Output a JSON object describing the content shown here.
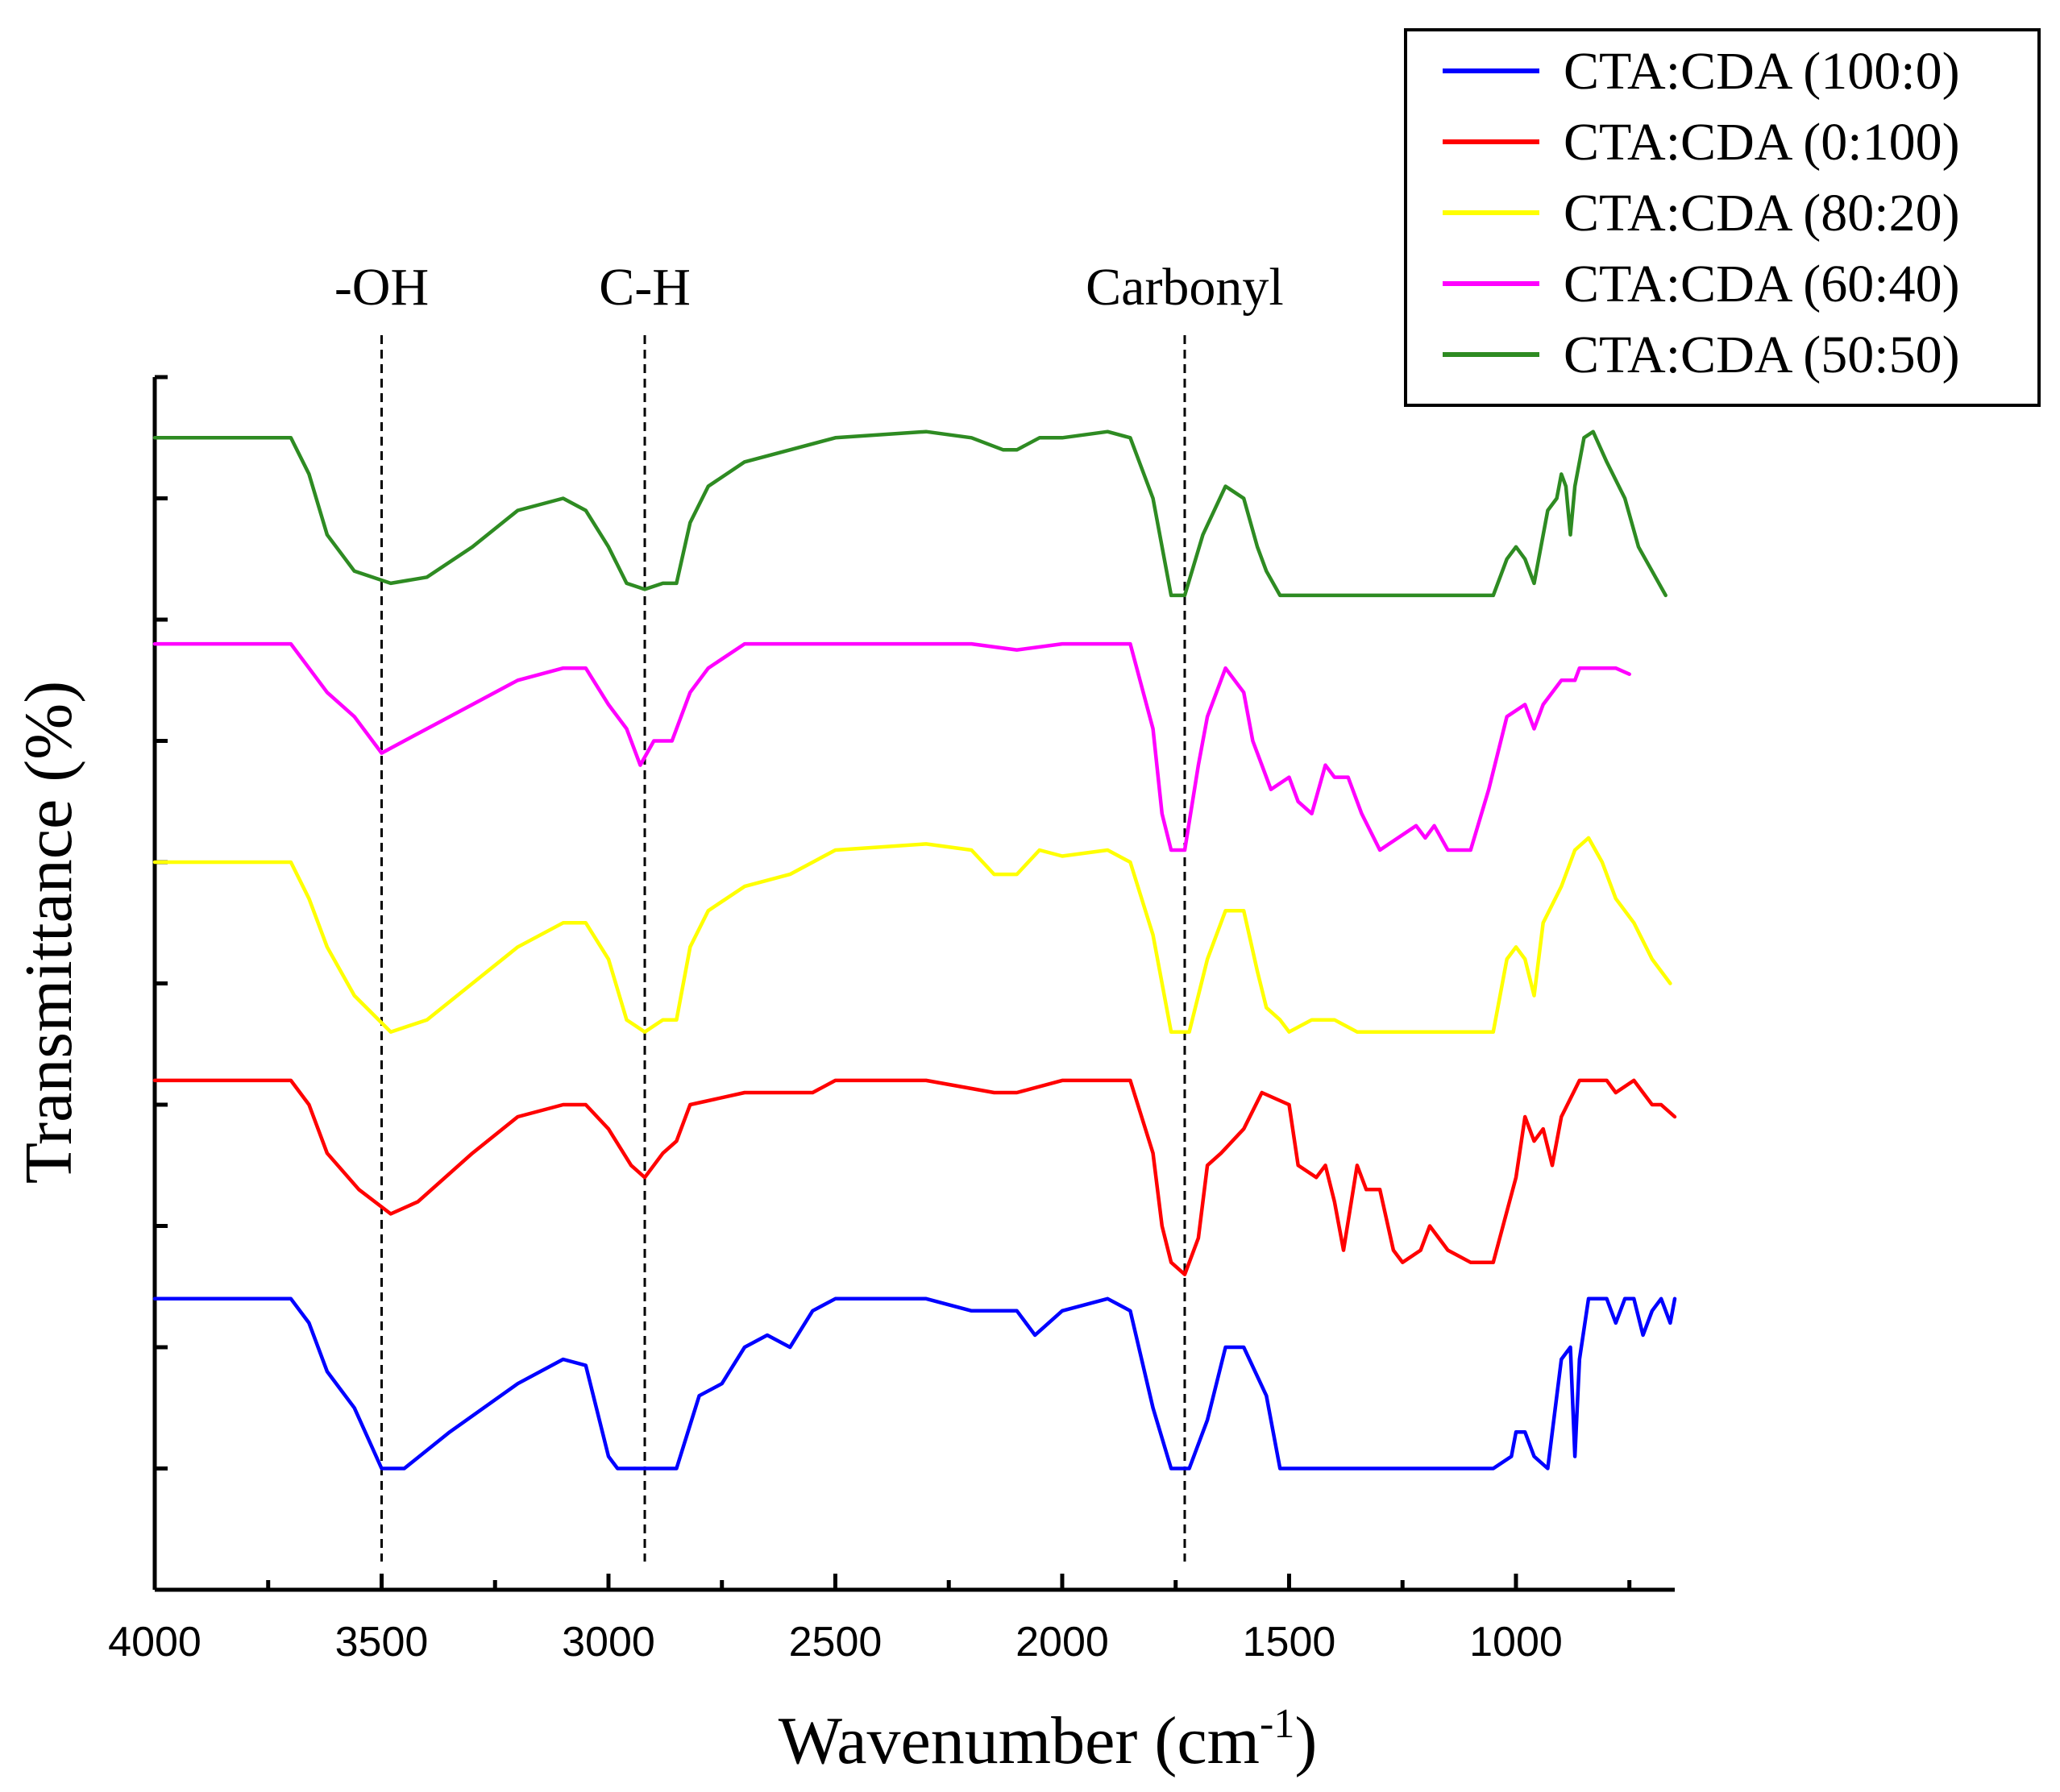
{
  "chart_data": {
    "type": "line",
    "title": "",
    "xlabel": "Wavenumber (cm",
    "xlabel_sup": "-1",
    "xlabel_end": ")",
    "ylabel": "Transmittance (%)",
    "xlim": [
      4000,
      650
    ],
    "x_reversed": true,
    "xticks": [
      4000,
      3500,
      3000,
      2500,
      2000,
      1500,
      1000
    ],
    "ylim": [
      0,
      1
    ],
    "y_tick_count": 11,
    "grid": false,
    "legend_position": "top-right",
    "annotations": [
      {
        "label": "-OH",
        "x": 3500
      },
      {
        "label": "C-H",
        "x": 2920
      },
      {
        "label": "Carbonyl",
        "x": 1730
      }
    ],
    "series": [
      {
        "name": "CTA:CDA (100:0)",
        "color": "#0000ff",
        "points": [
          [
            4000,
            0.24
          ],
          [
            3700,
            0.24
          ],
          [
            3660,
            0.22
          ],
          [
            3620,
            0.18
          ],
          [
            3560,
            0.15
          ],
          [
            3500,
            0.1
          ],
          [
            3450,
            0.1
          ],
          [
            3350,
            0.13
          ],
          [
            3200,
            0.17
          ],
          [
            3100,
            0.19
          ],
          [
            3050,
            0.185
          ],
          [
            3000,
            0.11
          ],
          [
            2980,
            0.1
          ],
          [
            2900,
            0.1
          ],
          [
            2850,
            0.1
          ],
          [
            2800,
            0.16
          ],
          [
            2750,
            0.17
          ],
          [
            2700,
            0.2
          ],
          [
            2650,
            0.21
          ],
          [
            2600,
            0.2
          ],
          [
            2550,
            0.23
          ],
          [
            2500,
            0.24
          ],
          [
            2300,
            0.24
          ],
          [
            2200,
            0.23
          ],
          [
            2100,
            0.23
          ],
          [
            2060,
            0.21
          ],
          [
            2000,
            0.23
          ],
          [
            1900,
            0.24
          ],
          [
            1850,
            0.23
          ],
          [
            1800,
            0.15
          ],
          [
            1760,
            0.1
          ],
          [
            1720,
            0.1
          ],
          [
            1680,
            0.14
          ],
          [
            1640,
            0.2
          ],
          [
            1600,
            0.2
          ],
          [
            1550,
            0.16
          ],
          [
            1520,
            0.1
          ],
          [
            1450,
            0.1
          ],
          [
            1100,
            0.1
          ],
          [
            1050,
            0.1
          ],
          [
            1010,
            0.11
          ],
          [
            1000,
            0.13
          ],
          [
            980,
            0.13
          ],
          [
            960,
            0.11
          ],
          [
            930,
            0.1
          ],
          [
            900,
            0.19
          ],
          [
            880,
            0.2
          ],
          [
            870,
            0.11
          ],
          [
            860,
            0.19
          ],
          [
            840,
            0.24
          ],
          [
            800,
            0.24
          ],
          [
            780,
            0.22
          ],
          [
            760,
            0.24
          ],
          [
            740,
            0.24
          ],
          [
            720,
            0.21
          ],
          [
            700,
            0.23
          ],
          [
            680,
            0.24
          ],
          [
            660,
            0.22
          ],
          [
            650,
            0.24
          ]
        ]
      },
      {
        "name": "CTA:CDA (0:100)",
        "color": "#ff0000",
        "points": [
          [
            4000,
            0.42
          ],
          [
            3700,
            0.42
          ],
          [
            3660,
            0.4
          ],
          [
            3620,
            0.36
          ],
          [
            3550,
            0.33
          ],
          [
            3480,
            0.31
          ],
          [
            3420,
            0.32
          ],
          [
            3300,
            0.36
          ],
          [
            3200,
            0.39
          ],
          [
            3100,
            0.4
          ],
          [
            3050,
            0.4
          ],
          [
            3000,
            0.38
          ],
          [
            2950,
            0.35
          ],
          [
            2920,
            0.34
          ],
          [
            2880,
            0.36
          ],
          [
            2850,
            0.37
          ],
          [
            2820,
            0.4
          ],
          [
            2700,
            0.41
          ],
          [
            2550,
            0.41
          ],
          [
            2500,
            0.42
          ],
          [
            2300,
            0.42
          ],
          [
            2150,
            0.41
          ],
          [
            2100,
            0.41
          ],
          [
            2000,
            0.42
          ],
          [
            1900,
            0.42
          ],
          [
            1850,
            0.42
          ],
          [
            1800,
            0.36
          ],
          [
            1780,
            0.3
          ],
          [
            1760,
            0.27
          ],
          [
            1730,
            0.26
          ],
          [
            1700,
            0.29
          ],
          [
            1680,
            0.35
          ],
          [
            1650,
            0.36
          ],
          [
            1600,
            0.38
          ],
          [
            1560,
            0.41
          ],
          [
            1500,
            0.4
          ],
          [
            1480,
            0.35
          ],
          [
            1440,
            0.34
          ],
          [
            1420,
            0.35
          ],
          [
            1400,
            0.32
          ],
          [
            1380,
            0.28
          ],
          [
            1350,
            0.35
          ],
          [
            1330,
            0.33
          ],
          [
            1300,
            0.33
          ],
          [
            1270,
            0.28
          ],
          [
            1250,
            0.27
          ],
          [
            1210,
            0.28
          ],
          [
            1190,
            0.3
          ],
          [
            1170,
            0.29
          ],
          [
            1150,
            0.28
          ],
          [
            1100,
            0.27
          ],
          [
            1050,
            0.27
          ],
          [
            1000,
            0.34
          ],
          [
            980,
            0.39
          ],
          [
            960,
            0.37
          ],
          [
            940,
            0.38
          ],
          [
            920,
            0.35
          ],
          [
            900,
            0.39
          ],
          [
            860,
            0.42
          ],
          [
            800,
            0.42
          ],
          [
            780,
            0.41
          ],
          [
            740,
            0.42
          ],
          [
            720,
            0.41
          ],
          [
            700,
            0.4
          ],
          [
            680,
            0.4
          ],
          [
            650,
            0.39
          ]
        ]
      },
      {
        "name": "CTA:CDA (80:20)",
        "color": "#ffff00",
        "points": [
          [
            4000,
            0.6
          ],
          [
            3700,
            0.6
          ],
          [
            3660,
            0.57
          ],
          [
            3620,
            0.53
          ],
          [
            3560,
            0.49
          ],
          [
            3480,
            0.46
          ],
          [
            3400,
            0.47
          ],
          [
            3300,
            0.5
          ],
          [
            3200,
            0.53
          ],
          [
            3100,
            0.55
          ],
          [
            3050,
            0.55
          ],
          [
            3000,
            0.52
          ],
          [
            2960,
            0.47
          ],
          [
            2920,
            0.46
          ],
          [
            2880,
            0.47
          ],
          [
            2850,
            0.47
          ],
          [
            2820,
            0.53
          ],
          [
            2780,
            0.56
          ],
          [
            2700,
            0.58
          ],
          [
            2600,
            0.59
          ],
          [
            2500,
            0.61
          ],
          [
            2300,
            0.615
          ],
          [
            2200,
            0.61
          ],
          [
            2150,
            0.59
          ],
          [
            2100,
            0.59
          ],
          [
            2050,
            0.61
          ],
          [
            2000,
            0.605
          ],
          [
            1900,
            0.61
          ],
          [
            1850,
            0.6
          ],
          [
            1800,
            0.54
          ],
          [
            1760,
            0.46
          ],
          [
            1720,
            0.46
          ],
          [
            1680,
            0.52
          ],
          [
            1640,
            0.56
          ],
          [
            1600,
            0.56
          ],
          [
            1570,
            0.51
          ],
          [
            1550,
            0.48
          ],
          [
            1520,
            0.47
          ],
          [
            1500,
            0.46
          ],
          [
            1450,
            0.47
          ],
          [
            1400,
            0.47
          ],
          [
            1350,
            0.46
          ],
          [
            1100,
            0.46
          ],
          [
            1050,
            0.46
          ],
          [
            1020,
            0.52
          ],
          [
            1000,
            0.53
          ],
          [
            980,
            0.52
          ],
          [
            960,
            0.49
          ],
          [
            940,
            0.55
          ],
          [
            900,
            0.58
          ],
          [
            870,
            0.61
          ],
          [
            840,
            0.62
          ],
          [
            810,
            0.6
          ],
          [
            780,
            0.57
          ],
          [
            740,
            0.55
          ],
          [
            700,
            0.52
          ],
          [
            660,
            0.5
          ]
        ]
      },
      {
        "name": "CTA:CDA (60:40)",
        "color": "#ff00ff",
        "points": [
          [
            4000,
            0.78
          ],
          [
            3700,
            0.78
          ],
          [
            3660,
            0.76
          ],
          [
            3620,
            0.74
          ],
          [
            3560,
            0.72
          ],
          [
            3500,
            0.69
          ],
          [
            3450,
            0.7
          ],
          [
            3300,
            0.73
          ],
          [
            3200,
            0.75
          ],
          [
            3100,
            0.76
          ],
          [
            3050,
            0.76
          ],
          [
            3000,
            0.73
          ],
          [
            2960,
            0.71
          ],
          [
            2930,
            0.68
          ],
          [
            2900,
            0.7
          ],
          [
            2860,
            0.7
          ],
          [
            2820,
            0.74
          ],
          [
            2780,
            0.76
          ],
          [
            2700,
            0.78
          ],
          [
            2500,
            0.78
          ],
          [
            2200,
            0.78
          ],
          [
            2100,
            0.775
          ],
          [
            2000,
            0.78
          ],
          [
            1900,
            0.78
          ],
          [
            1850,
            0.78
          ],
          [
            1800,
            0.71
          ],
          [
            1780,
            0.64
          ],
          [
            1760,
            0.61
          ],
          [
            1730,
            0.61
          ],
          [
            1700,
            0.68
          ],
          [
            1680,
            0.72
          ],
          [
            1640,
            0.76
          ],
          [
            1600,
            0.74
          ],
          [
            1580,
            0.7
          ],
          [
            1560,
            0.68
          ],
          [
            1540,
            0.66
          ],
          [
            1500,
            0.67
          ],
          [
            1480,
            0.65
          ],
          [
            1450,
            0.64
          ],
          [
            1420,
            0.68
          ],
          [
            1400,
            0.67
          ],
          [
            1370,
            0.67
          ],
          [
            1340,
            0.64
          ],
          [
            1300,
            0.61
          ],
          [
            1260,
            0.62
          ],
          [
            1220,
            0.63
          ],
          [
            1200,
            0.62
          ],
          [
            1180,
            0.63
          ],
          [
            1150,
            0.61
          ],
          [
            1100,
            0.61
          ],
          [
            1060,
            0.66
          ],
          [
            1020,
            0.72
          ],
          [
            980,
            0.73
          ],
          [
            960,
            0.71
          ],
          [
            940,
            0.73
          ],
          [
            900,
            0.75
          ],
          [
            870,
            0.75
          ],
          [
            860,
            0.76
          ],
          [
            830,
            0.76
          ],
          [
            780,
            0.76
          ],
          [
            750,
            0.755
          ]
        ]
      },
      {
        "name": "CTA:CDA (50:50)",
        "color": "#2e8b22",
        "points": [
          [
            4000,
            0.95
          ],
          [
            3700,
            0.95
          ],
          [
            3660,
            0.92
          ],
          [
            3620,
            0.87
          ],
          [
            3560,
            0.84
          ],
          [
            3480,
            0.83
          ],
          [
            3400,
            0.835
          ],
          [
            3300,
            0.86
          ],
          [
            3200,
            0.89
          ],
          [
            3100,
            0.9
          ],
          [
            3050,
            0.89
          ],
          [
            3000,
            0.86
          ],
          [
            2960,
            0.83
          ],
          [
            2920,
            0.825
          ],
          [
            2880,
            0.83
          ],
          [
            2850,
            0.83
          ],
          [
            2820,
            0.88
          ],
          [
            2780,
            0.91
          ],
          [
            2700,
            0.93
          ],
          [
            2600,
            0.94
          ],
          [
            2500,
            0.95
          ],
          [
            2300,
            0.955
          ],
          [
            2200,
            0.95
          ],
          [
            2130,
            0.94
          ],
          [
            2100,
            0.94
          ],
          [
            2050,
            0.95
          ],
          [
            2000,
            0.95
          ],
          [
            1900,
            0.955
          ],
          [
            1850,
            0.95
          ],
          [
            1800,
            0.9
          ],
          [
            1760,
            0.82
          ],
          [
            1730,
            0.82
          ],
          [
            1690,
            0.87
          ],
          [
            1640,
            0.91
          ],
          [
            1600,
            0.9
          ],
          [
            1570,
            0.86
          ],
          [
            1550,
            0.84
          ],
          [
            1520,
            0.82
          ],
          [
            1450,
            0.82
          ],
          [
            1100,
            0.82
          ],
          [
            1050,
            0.82
          ],
          [
            1020,
            0.85
          ],
          [
            1000,
            0.86
          ],
          [
            980,
            0.85
          ],
          [
            960,
            0.83
          ],
          [
            930,
            0.89
          ],
          [
            910,
            0.9
          ],
          [
            900,
            0.92
          ],
          [
            890,
            0.91
          ],
          [
            880,
            0.87
          ],
          [
            870,
            0.91
          ],
          [
            850,
            0.95
          ],
          [
            830,
            0.955
          ],
          [
            800,
            0.93
          ],
          [
            760,
            0.9
          ],
          [
            730,
            0.86
          ],
          [
            700,
            0.84
          ],
          [
            670,
            0.82
          ]
        ]
      }
    ]
  }
}
